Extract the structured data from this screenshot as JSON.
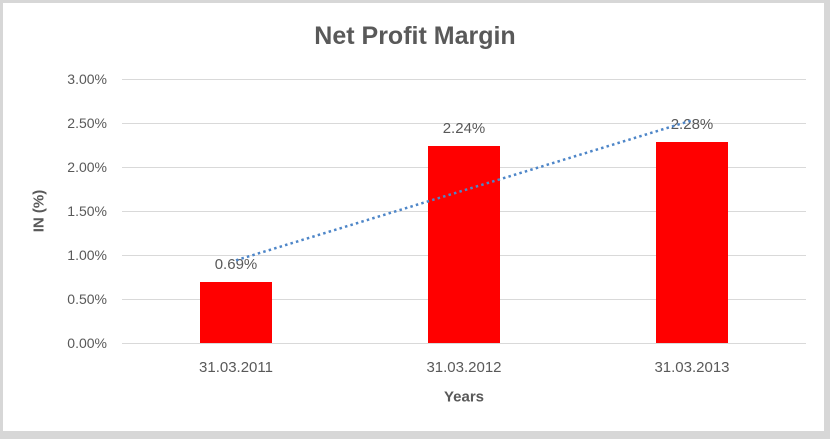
{
  "frame": {
    "border_color": "#d7d7d7",
    "background": "#ffffff"
  },
  "chart_data": {
    "type": "bar",
    "title": "Net Profit Margin",
    "xlabel": "Years",
    "ylabel": "IN (%)",
    "categories": [
      "31.03.2011",
      "31.03.2012",
      "31.03.2013"
    ],
    "values": [
      0.69,
      2.24,
      2.28
    ],
    "data_labels": [
      "0.69%",
      "2.24%",
      "2.28%"
    ],
    "y_ticks": [
      "0.00%",
      "0.50%",
      "1.00%",
      "1.50%",
      "2.00%",
      "2.50%",
      "3.00%"
    ],
    "y_tick_values": [
      0.0,
      0.5,
      1.0,
      1.5,
      2.0,
      2.5,
      3.0
    ],
    "ylim": [
      0.0,
      3.0
    ],
    "grid": true,
    "legend": "none",
    "bar_color": "#ff0000",
    "title_color": "#595959",
    "axis_text_color": "#595959",
    "gridline_color": "#d9d9d9",
    "trendline": {
      "type": "linear",
      "style": "dotted",
      "color": "#4e86c8",
      "start_value": 0.94,
      "end_value": 2.53
    }
  }
}
